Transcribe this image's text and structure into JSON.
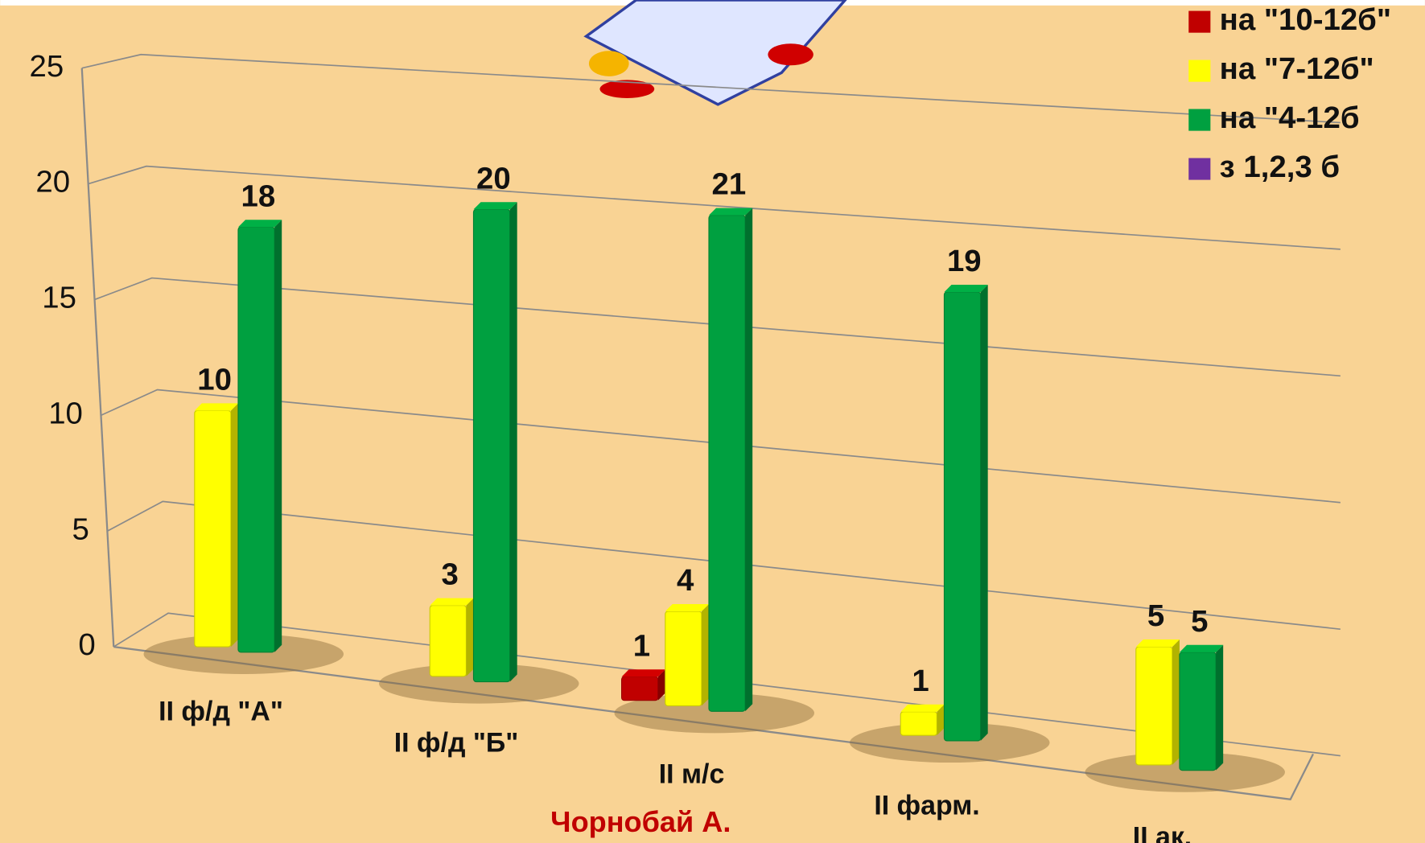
{
  "chart_data": {
    "type": "bar3d",
    "categories": [
      "II ф/д \"А\"",
      "II ф/д \"Б\"",
      "II м/с",
      "II фарм.",
      "II ак."
    ],
    "series": [
      {
        "name": "на \"10-12б\"",
        "color": "#c00000",
        "values": [
          null,
          null,
          1,
          null,
          null
        ]
      },
      {
        "name": "на \"7-12б\"",
        "color": "#ffff00",
        "values": [
          10,
          3,
          4,
          1,
          5
        ]
      },
      {
        "name": "на \"4-12б",
        "color": "#00a040",
        "values": [
          18,
          20,
          21,
          19,
          5
        ]
      },
      {
        "name": "з 1,2,3 б",
        "color": "#7030a0",
        "values": [
          null,
          null,
          null,
          null,
          null
        ]
      }
    ],
    "ylim": [
      0,
      25
    ],
    "yticks": [
      0,
      5,
      10,
      15,
      20,
      25
    ],
    "grid": true,
    "legend": "top-right",
    "annotation": "Чорнобай А."
  }
}
